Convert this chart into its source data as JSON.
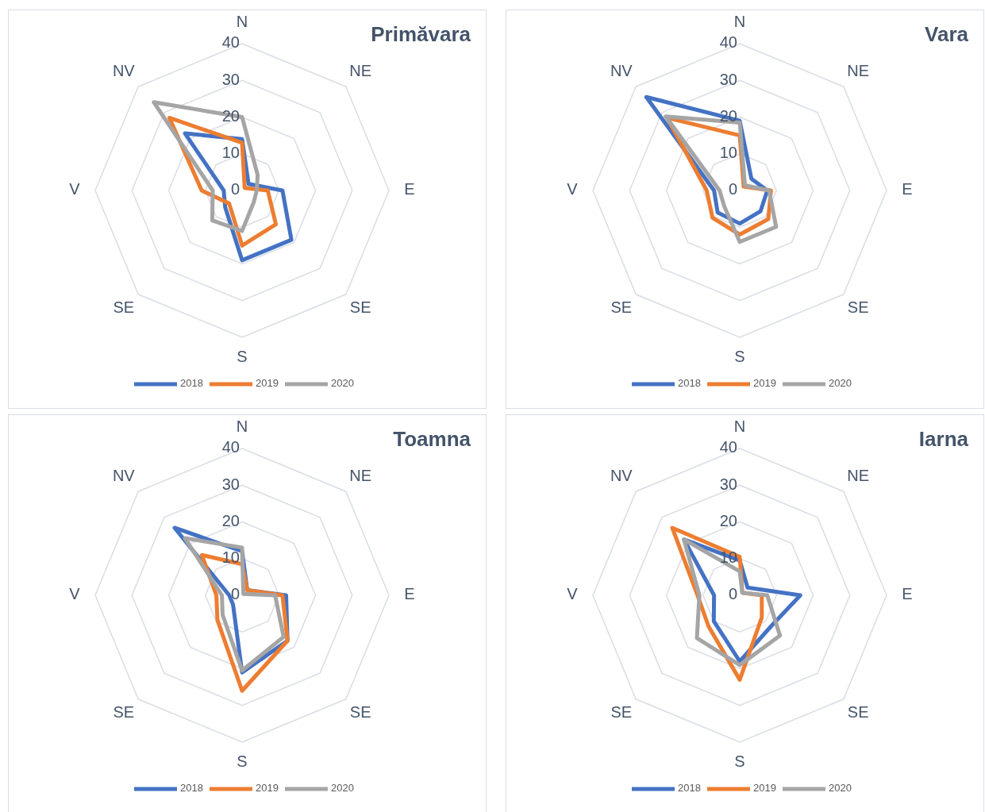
{
  "chart_data": [
    {
      "type": "radar",
      "title": "Primăvara",
      "categories": [
        "N",
        "NE",
        "E",
        "SE",
        "S",
        "SE",
        "V",
        "NV"
      ],
      "ylim": [
        0,
        40
      ],
      "yticks": [
        0,
        10,
        20,
        30,
        40
      ],
      "grid": true,
      "legend": "bottom",
      "series": [
        {
          "name": "2018",
          "color": "#4472c4",
          "values": [
            14,
            2.5,
            11,
            19,
            19,
            6.5,
            5,
            22
          ]
        },
        {
          "name": "2019",
          "color": "#ed7d31",
          "values": [
            13,
            1,
            7,
            13,
            15,
            5,
            11,
            28
          ]
        },
        {
          "name": "2020",
          "color": "#a5a5a5",
          "values": [
            20,
            6,
            4,
            4.5,
            11,
            11.5,
            8,
            34
          ]
        }
      ]
    },
    {
      "type": "radar",
      "title": "Vara",
      "categories": [
        "N",
        "NE",
        "E",
        "SE",
        "S",
        "SE",
        "V",
        "NV"
      ],
      "ylim": [
        0,
        40
      ],
      "yticks": [
        0,
        10,
        20,
        30,
        40
      ],
      "grid": true,
      "legend": "bottom",
      "series": [
        {
          "name": "2018",
          "color": "#4472c4",
          "values": [
            19,
            4.5,
            7.5,
            8,
            9,
            8.5,
            7,
            36
          ]
        },
        {
          "name": "2019",
          "color": "#ed7d31",
          "values": [
            15,
            1.5,
            8.5,
            11,
            12,
            10.5,
            9,
            28
          ]
        },
        {
          "name": "2020",
          "color": "#a5a5a5",
          "values": [
            18.5,
            2,
            8,
            14,
            14,
            6,
            5.5,
            28.5
          ]
        }
      ]
    },
    {
      "type": "radar",
      "title": "Toamna",
      "categories": [
        "N",
        "NE",
        "E",
        "SE",
        "S",
        "SE",
        "V",
        "NV"
      ],
      "ylim": [
        0,
        40
      ],
      "yticks": [
        0,
        10,
        20,
        30,
        40
      ],
      "grid": true,
      "legend": "bottom",
      "series": [
        {
          "name": "2018",
          "color": "#4472c4",
          "values": [
            12,
            2,
            12,
            17.5,
            21,
            3.5,
            3.5,
            26
          ]
        },
        {
          "name": "2019",
          "color": "#ed7d31",
          "values": [
            8.5,
            2,
            11,
            17.5,
            26,
            9.5,
            7,
            15.5
          ]
        },
        {
          "name": "2020",
          "color": "#a5a5a5",
          "values": [
            13,
            0.5,
            9,
            16,
            20.5,
            7.5,
            5.5,
            22
          ]
        }
      ]
    },
    {
      "type": "radar",
      "title": "Iarna",
      "categories": [
        "N",
        "NE",
        "E",
        "SE",
        "S",
        "SE",
        "V",
        "NV"
      ],
      "ylim": [
        0,
        40
      ],
      "yticks": [
        0,
        10,
        20,
        30,
        40
      ],
      "grid": true,
      "legend": "bottom",
      "series": [
        {
          "name": "2018",
          "color": "#4472c4",
          "values": [
            9.5,
            3,
            16.5,
            12,
            18,
            10,
            7,
            21.5
          ]
        },
        {
          "name": "2019",
          "color": "#ed7d31",
          "values": [
            10.5,
            1,
            6,
            8.5,
            23,
            12,
            11.5,
            26
          ]
        },
        {
          "name": "2020",
          "color": "#a5a5a5",
          "values": [
            6.5,
            1,
            7.5,
            15.5,
            19,
            16.5,
            11,
            21.5
          ]
        }
      ]
    }
  ]
}
